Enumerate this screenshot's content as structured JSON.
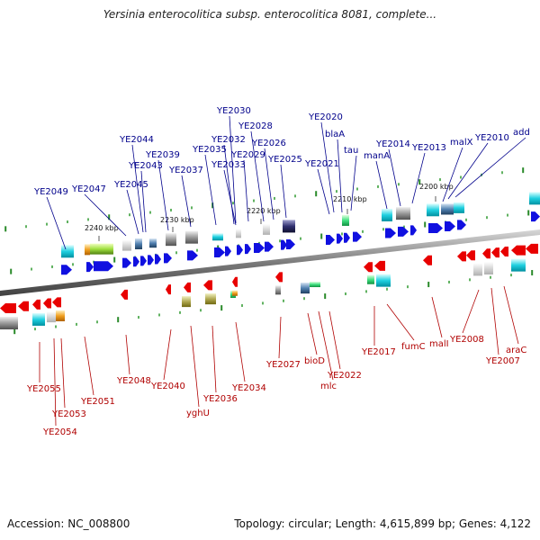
{
  "title": "Yersinia enterocolitica subsp. enterocolitica 8081, complete...",
  "footer": {
    "accession": "Accession: NC_008800",
    "summary": "Topology: circular; Length: 4,615,899 bp; Genes: 4,122"
  },
  "colors": {
    "forward": "#1010e0",
    "reverse": "#e80000",
    "backbone": "#8a8a8a",
    "top_label": "#00008b",
    "bottom_label": "#b00000"
  },
  "bp_marks": [
    "2240 kbp",
    "2230 kbp",
    "2220 kbp",
    "2210 kbp",
    "2200 kbp"
  ],
  "top_labels": [
    "YE2049",
    "YE2047",
    "YE2045",
    "YE2044",
    "YE2043",
    "YE2039",
    "YE2037",
    "YE2035",
    "YE2033",
    "YE2032",
    "YE2030",
    "YE2029",
    "YE2028",
    "YE2026",
    "YE2025",
    "YE2021",
    "YE2020",
    "blaA",
    "tau",
    "manA",
    "YE2014",
    "YE2013",
    "malX",
    "YE2010",
    "add"
  ],
  "bottom_labels": [
    "YE2055",
    "YE2054",
    "YE2053",
    "YE2051",
    "YE2048",
    "YE2040",
    "yghU",
    "YE2036",
    "YE2034",
    "YE2027",
    "bioD",
    "mlc",
    "YE2022",
    "YE2017",
    "fumC",
    "malI",
    "YE2008",
    "YE2007",
    "araC"
  ]
}
